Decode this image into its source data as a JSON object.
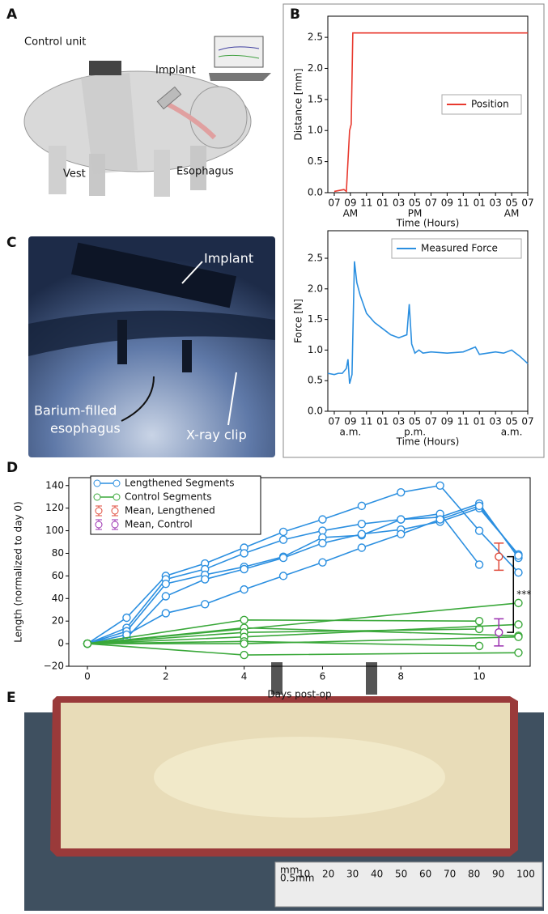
{
  "panel_labels": [
    "A",
    "B",
    "C",
    "D",
    "E"
  ],
  "illustration_labels": {
    "control_unit": "Control unit",
    "implant": "Implant",
    "vest": "Vest",
    "esophagus": "Esophagus"
  },
  "xray_labels": {
    "implant": "Implant",
    "barium_line1": "Barium-filled",
    "barium_line2": "esophagus",
    "clip": "X-ray clip"
  },
  "ruler_labels": [
    "mm",
    "0.5mm",
    "10",
    "20",
    "30",
    "40",
    "50",
    "60",
    "70",
    "80",
    "90",
    "100"
  ],
  "chart_data": [
    {
      "type": "line",
      "xlabel": "Time (Hours)",
      "ylabel": "Distance [mm]",
      "legend": "center right",
      "xlim": [
        -0.8,
        24
      ],
      "ylim": [
        0,
        2.84
      ],
      "xticks": [
        {
          "value": 0,
          "label": "07"
        },
        {
          "value": 2,
          "label": "09"
        },
        {
          "value": 4,
          "label": "11"
        },
        {
          "value": 6,
          "label": "01"
        },
        {
          "value": 8,
          "label": "03"
        },
        {
          "value": 10,
          "label": "05"
        },
        {
          "value": 12,
          "label": "07"
        },
        {
          "value": 14,
          "label": "09"
        },
        {
          "value": 16,
          "label": "11"
        },
        {
          "value": 18,
          "label": "01"
        },
        {
          "value": 20,
          "label": "03"
        },
        {
          "value": 22,
          "label": "05"
        },
        {
          "value": 24,
          "label": "07"
        }
      ],
      "xsublabels": [
        {
          "value": 2,
          "label": "AM"
        },
        {
          "value": 10,
          "label": "PM"
        },
        {
          "value": 22,
          "label": "AM"
        }
      ],
      "yticks": [
        {
          "value": 0,
          "label": "0.0"
        },
        {
          "value": 0.5,
          "label": "0.5"
        },
        {
          "value": 1,
          "label": "1.0"
        },
        {
          "value": 1.5,
          "label": "1.5"
        },
        {
          "value": 2,
          "label": "2.0"
        },
        {
          "value": 2.5,
          "label": "2.5"
        }
      ],
      "series": [
        {
          "name": "Position",
          "color": "#e8392e",
          "x": [
            0,
            1.2,
            1.5,
            1.9,
            2.1,
            2.3,
            24
          ],
          "values": [
            0.02,
            0.05,
            0.02,
            1.0,
            1.1,
            2.57,
            2.57
          ]
        }
      ]
    },
    {
      "type": "line",
      "xlabel": "Time (Hours)",
      "ylabel": "Force [N]",
      "legend": "upper right",
      "xlim": [
        -0.8,
        24
      ],
      "ylim": [
        0,
        2.95
      ],
      "xticks": [
        {
          "value": 0,
          "label": "07"
        },
        {
          "value": 2,
          "label": "09"
        },
        {
          "value": 4,
          "label": "11"
        },
        {
          "value": 6,
          "label": "01"
        },
        {
          "value": 8,
          "label": "03"
        },
        {
          "value": 10,
          "label": "05"
        },
        {
          "value": 12,
          "label": "07"
        },
        {
          "value": 14,
          "label": "09"
        },
        {
          "value": 16,
          "label": "11"
        },
        {
          "value": 18,
          "label": "01"
        },
        {
          "value": 20,
          "label": "03"
        },
        {
          "value": 22,
          "label": "05"
        },
        {
          "value": 24,
          "label": "07"
        }
      ],
      "xsublabels": [
        {
          "value": 2,
          "label": "a.m."
        },
        {
          "value": 10,
          "label": "p.m."
        },
        {
          "value": 22,
          "label": "a.m."
        }
      ],
      "yticks": [
        {
          "value": 0,
          "label": "0.0"
        },
        {
          "value": 0.5,
          "label": "0.5"
        },
        {
          "value": 1,
          "label": "1.0"
        },
        {
          "value": 1.5,
          "label": "1.5"
        },
        {
          "value": 2,
          "label": "2.0"
        },
        {
          "value": 2.5,
          "label": "2.5"
        }
      ],
      "series": [
        {
          "name": "Measured Force",
          "color": "#2b8fe0",
          "x": [
            -0.8,
            0,
            0.5,
            1,
            1.5,
            1.7,
            1.9,
            2.2,
            2.5,
            2.8,
            3.2,
            4,
            5,
            6,
            7,
            8,
            9,
            9.3,
            9.6,
            10,
            10.5,
            11,
            12,
            14,
            16,
            17.5,
            18,
            20,
            21,
            22,
            23,
            24
          ],
          "values": [
            0.62,
            0.6,
            0.62,
            0.62,
            0.7,
            0.85,
            0.45,
            0.6,
            2.45,
            2.1,
            1.9,
            1.6,
            1.45,
            1.35,
            1.25,
            1.2,
            1.25,
            1.75,
            1.1,
            0.95,
            1.0,
            0.95,
            0.97,
            0.95,
            0.97,
            1.05,
            0.93,
            0.97,
            0.95,
            1.0,
            0.9,
            0.78
          ]
        }
      ]
    },
    {
      "type": "line",
      "xlabel": "Days post-op",
      "ylabel": "Length (normalized to day 0)",
      "legend": "upper left",
      "annotation": "***",
      "xlim": [
        -0.475,
        11.3
      ],
      "ylim": [
        -20,
        147
      ],
      "xticks": [
        0,
        2,
        4,
        6,
        8,
        10
      ],
      "yticks": [
        {
          "value": -20,
          "label": "−20"
        },
        0,
        20,
        40,
        60,
        80,
        100,
        120,
        140
      ],
      "series": [
        {
          "name": "Lengthened Segments",
          "color": "#2b8fe0",
          "lines": [
            {
              "x": [
                0,
                1,
                2,
                3,
                4,
                5,
                6,
                7,
                8,
                9,
                10,
                11
              ],
              "values": [
                0,
                23,
                60,
                71,
                85,
                99,
                110,
                122,
                134,
                140,
                100,
                63
              ]
            },
            {
              "x": [
                0,
                1,
                2,
                3,
                4,
                5,
                6,
                7,
                8,
                9,
                10,
                11
              ],
              "values": [
                0,
                14,
                57,
                66,
                80,
                92,
                100,
                106,
                110,
                112,
                124,
                76
              ]
            },
            {
              "x": [
                0,
                1,
                2,
                3,
                4,
                5,
                6,
                7,
                8,
                9,
                10
              ],
              "values": [
                0,
                11,
                53,
                61,
                68,
                77,
                94,
                96,
                110,
                115,
                70
              ]
            },
            {
              "x": [
                0,
                1,
                2,
                3,
                4,
                5,
                6,
                7,
                8,
                9,
                10,
                11
              ],
              "values": [
                0,
                5,
                42,
                57,
                66,
                76,
                89,
                97,
                101,
                108,
                120,
                79
              ]
            },
            {
              "x": [
                0,
                1,
                2,
                3,
                4,
                5,
                6,
                7,
                8,
                9,
                10,
                11
              ],
              "values": [
                0,
                8,
                27,
                35,
                48,
                60,
                72,
                85,
                97,
                110,
                122,
                78
              ]
            }
          ]
        },
        {
          "name": "Control Segments",
          "color": "#3aa83a",
          "lines": [
            {
              "x": [
                0,
                11
              ],
              "values": [
                0,
                36
              ]
            },
            {
              "x": [
                0,
                4,
                10
              ],
              "values": [
                0,
                21,
                20
              ]
            },
            {
              "x": [
                0,
                4,
                11
              ],
              "values": [
                0,
                14,
                7
              ]
            },
            {
              "x": [
                0,
                4,
                10
              ],
              "values": [
                0,
                10,
                13
              ]
            },
            {
              "x": [
                0,
                4,
                11
              ],
              "values": [
                0,
                6,
                17
              ]
            },
            {
              "x": [
                0,
                4,
                10
              ],
              "values": [
                0,
                2,
                -2
              ]
            },
            {
              "x": [
                0,
                4,
                11
              ],
              "values": [
                0,
                -10,
                -8
              ]
            },
            {
              "x": [
                0,
                4,
                11
              ],
              "values": [
                0,
                0,
                6
              ]
            }
          ]
        },
        {
          "name": "Mean, Lengthened",
          "color": "#e04a3a",
          "x": [
            10.5
          ],
          "values": [
            77
          ],
          "errors": [
            12
          ]
        },
        {
          "name": "Mean, Control",
          "color": "#9b30b0",
          "x": [
            10.5
          ],
          "values": [
            10
          ],
          "errors": [
            12
          ]
        }
      ]
    }
  ]
}
